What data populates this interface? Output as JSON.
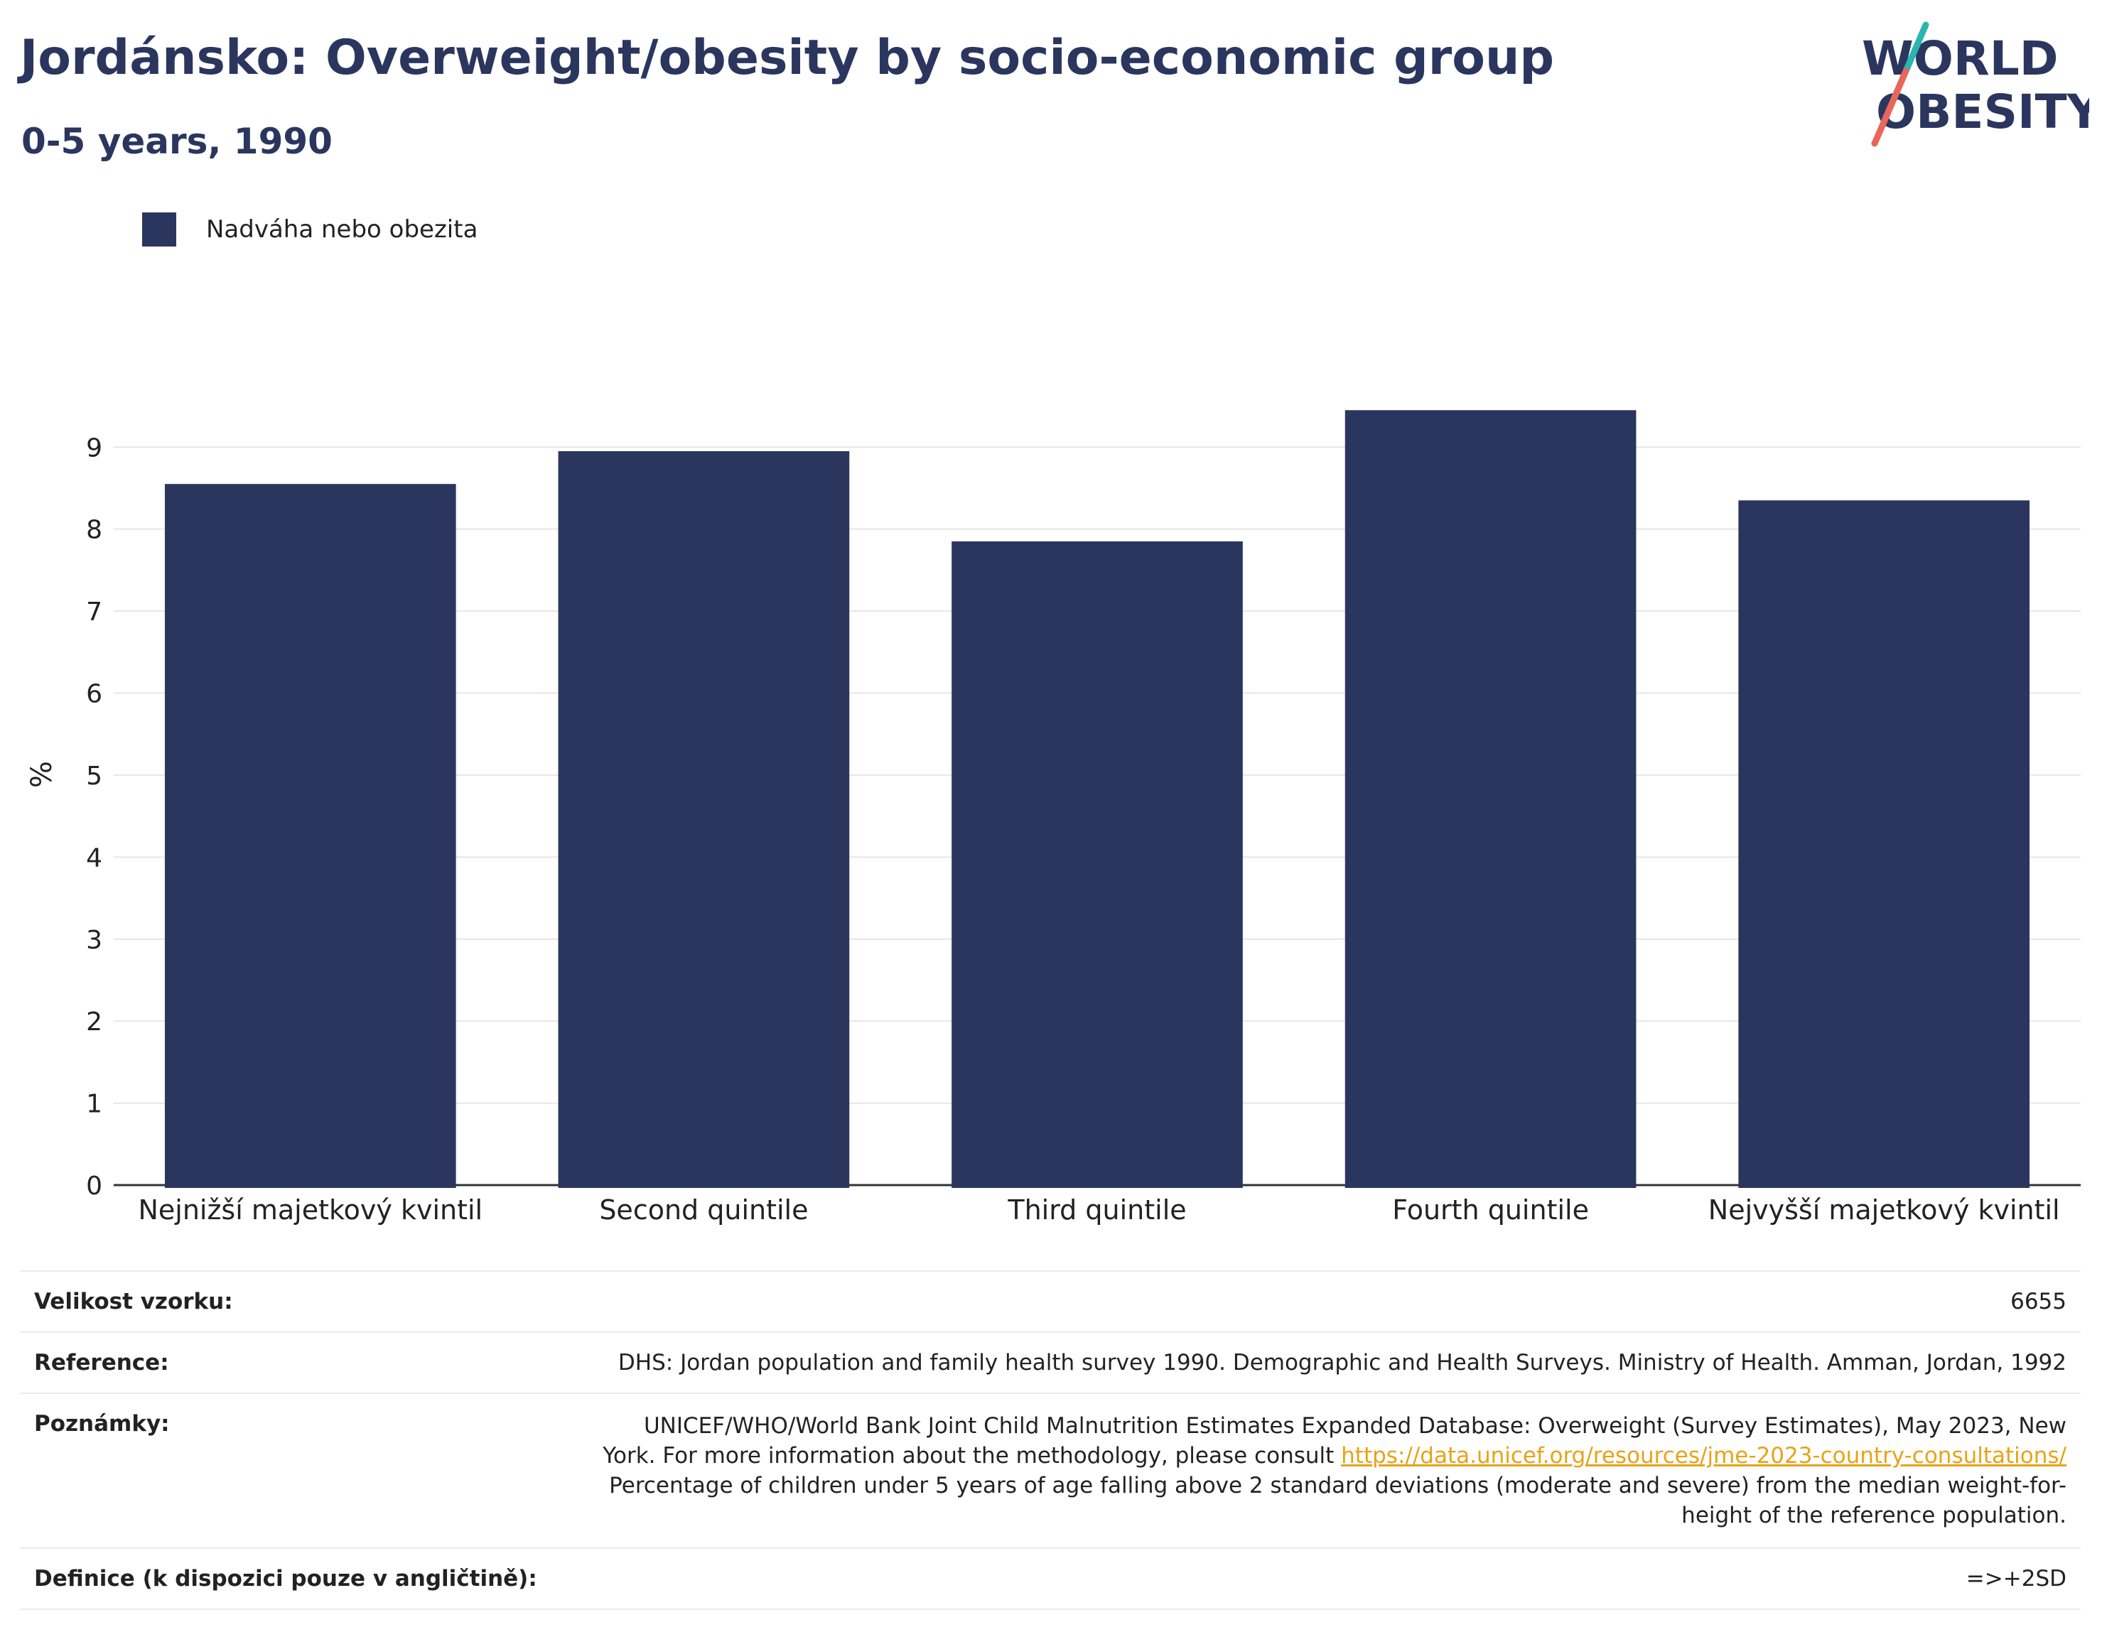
{
  "header": {
    "title": "Jordánsko: Overweight/obesity by socio-economic group",
    "subtitle": "0-5 years, 1990"
  },
  "logo": {
    "line1": "WORLD",
    "line2": "OBESITY",
    "colors": {
      "text": "#2b365f",
      "slash_top": "#2bb5b0",
      "slash_bottom": "#e8665a"
    }
  },
  "legend": {
    "label": "Nadváha nebo obezita",
    "color": "#2b365f"
  },
  "chart_data": {
    "type": "bar",
    "categories": [
      "Nejnižší majetkový kvintil",
      "Second quintile",
      "Third quintile",
      "Fourth quintile",
      "Nejvyšší majetkový kvintil"
    ],
    "series": [
      {
        "name": "Nadváha nebo obezita",
        "values": [
          8.55,
          8.95,
          7.85,
          9.45,
          8.35
        ],
        "color": "#2b365f"
      }
    ],
    "ylabel": "%",
    "ylim": [
      0,
      9.6
    ],
    "yticks": [
      0,
      1,
      2,
      3,
      4,
      5,
      6,
      7,
      8,
      9
    ],
    "grid": true,
    "legend_position": "top-left"
  },
  "info": {
    "sample_label": "Velikost vzorku:",
    "sample_value": "6655",
    "reference_label": "Reference:",
    "reference_value": "DHS: Jordan population and family health survey 1990. Demographic and Health Surveys. Ministry of Health. Amman, Jordan, 1992",
    "notes_label": "Poznámky:",
    "notes_text1": "UNICEF/WHO/World Bank Joint Child Malnutrition Estimates Expanded Database: Overweight (Survey Estimates), May 2023, New York. For more information about the methodology, please consult ",
    "notes_link": "https://data.unicef.org/resources/jme-2023-country-consultations/",
    "notes_text2": "Percentage of children under 5 years of age falling above 2 standard deviations (moderate and severe) from the median weight-for-height of the reference population.",
    "definition_label": "Definice (k dispozici pouze v angličtině):",
    "definition_value": "=>+2SD"
  }
}
